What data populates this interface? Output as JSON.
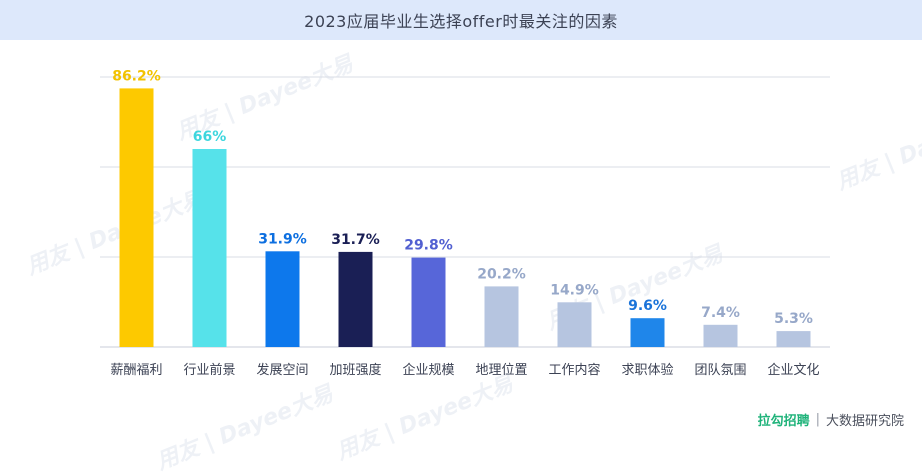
{
  "title": "2023应届毕业生选择offer时最关注的因素",
  "footer": {
    "brand": "拉勾招聘",
    "separator": "|",
    "unit": "大数据研究院"
  },
  "watermark_text": "用友 | Dayee大易",
  "colors": {
    "title_bg": "#dde8fb",
    "grid": "#d9dde5",
    "axis_label": "#3c4254"
  },
  "chart_data": {
    "type": "bar",
    "title": "2023应届毕业生选择offer时最关注的因素",
    "xlabel": "",
    "ylabel": "",
    "ylim": [
      0,
      90
    ],
    "grid": true,
    "categories": [
      "薪酬福利",
      "行业前景",
      "发展空间",
      "加班强度",
      "企业规模",
      "地理位置",
      "工作内容",
      "求职体验",
      "团队氛围",
      "企业文化"
    ],
    "values": [
      86.2,
      66,
      31.9,
      31.7,
      29.8,
      20.2,
      14.9,
      9.6,
      7.4,
      5.3
    ],
    "value_labels": [
      "86.2%",
      "66%",
      "31.9%",
      "31.7%",
      "29.8%",
      "20.2%",
      "14.9%",
      "9.6%",
      "7.4%",
      "5.3%"
    ],
    "bar_colors": [
      "#fdc900",
      "#56e2ea",
      "#0d78ec",
      "#1a1f55",
      "#5766d9",
      "#b6c5e0",
      "#b6c5e0",
      "#1f86ea",
      "#b6c5e0",
      "#b6c5e0"
    ],
    "label_colors": [
      "#f2c200",
      "#3dd6de",
      "#0d6fe0",
      "#1a1f55",
      "#5260d1",
      "#97a8c9",
      "#97a8c9",
      "#1a73d9",
      "#97a8c9",
      "#97a8c9"
    ]
  }
}
